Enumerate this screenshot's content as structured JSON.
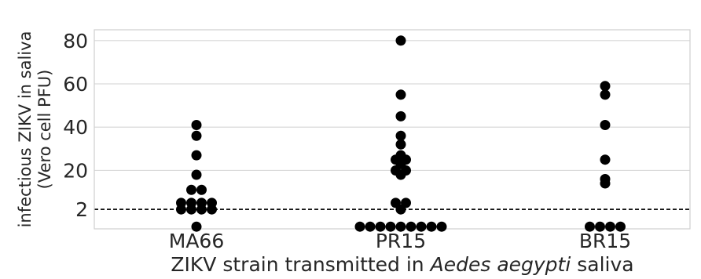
{
  "chart_data": {
    "type": "scatter",
    "style": "swarm",
    "xlabel_parts": [
      "ZIKV strain transmitted in ",
      "Aedes aegypti",
      " saliva"
    ],
    "ylabel_lines": [
      "infectious ZIKV in saliva",
      "(Vero cell PFU)"
    ],
    "categories": [
      "MA66",
      "PR15",
      "BR15"
    ],
    "y_ticks": [
      2,
      20,
      40,
      60,
      80
    ],
    "ylim": [
      -7,
      85
    ],
    "threshold": 2,
    "threshold_style": "dashed",
    "grid": true,
    "marker_color": "#000000",
    "series": [
      {
        "category": "MA66",
        "values": [
          41,
          36,
          27,
          18,
          11,
          11,
          5,
          5,
          5,
          5,
          2,
          2,
          2,
          2,
          -6
        ]
      },
      {
        "category": "PR15",
        "values": [
          80,
          55,
          45,
          36,
          32,
          27,
          25,
          25,
          23,
          20,
          20,
          18,
          5,
          5,
          2,
          -6,
          -6,
          -6,
          -6,
          -6,
          -6,
          -6,
          -6,
          -6
        ]
      },
      {
        "category": "BR15",
        "values": [
          59,
          55,
          41,
          25,
          16,
          14,
          -6,
          -6,
          -6,
          -6
        ]
      }
    ]
  }
}
